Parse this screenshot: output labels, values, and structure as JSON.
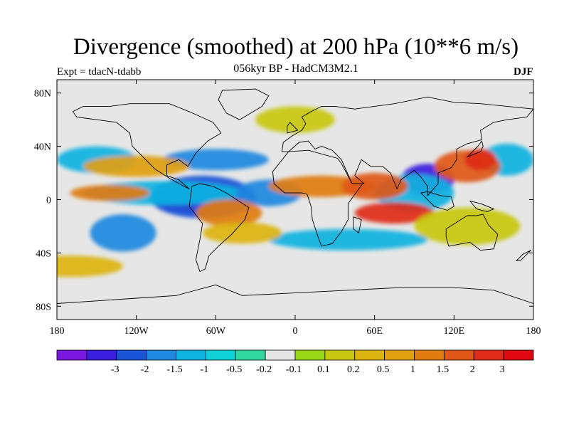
{
  "title": "Divergence (smoothed) at 200 hPa (10**6 m/s)",
  "subtitle": "056kyr BP - HadCM3M2.1",
  "experiment": "Expt = tdacN-tdabb",
  "season": "DJF",
  "map": {
    "projection": "cylindrical equidistant",
    "lon_range": [
      -180,
      180
    ],
    "lat_range": [
      -90,
      90
    ],
    "y_ticks": [
      {
        "lat": 80,
        "label": "80N"
      },
      {
        "lat": 40,
        "label": "40N"
      },
      {
        "lat": 0,
        "label": "0"
      },
      {
        "lat": -40,
        "label": "40S"
      },
      {
        "lat": -80,
        "label": "80S"
      }
    ],
    "x_ticks": [
      {
        "lon": -180,
        "label": "180"
      },
      {
        "lon": -120,
        "label": "120W"
      },
      {
        "lon": -60,
        "label": "60W"
      },
      {
        "lon": 0,
        "label": "0"
      },
      {
        "lon": 60,
        "label": "60E"
      },
      {
        "lon": 120,
        "label": "120E"
      },
      {
        "lon": 180,
        "label": "180"
      }
    ]
  },
  "colorbar": {
    "colors": [
      "#7a18e0",
      "#3a1ee0",
      "#1a55d8",
      "#1e88e0",
      "#10b2e0",
      "#10d0d8",
      "#30d8a0",
      "#e6e6e6",
      "#98d818",
      "#c8c810",
      "#dcb410",
      "#e0a010",
      "#e07c10",
      "#e05818",
      "#e02c18",
      "#e00810"
    ],
    "labels": [
      "-3",
      "-2",
      "-1.5",
      "-1",
      "-0.5",
      "-0.2",
      "-0.1",
      "0.1",
      "0.2",
      "0.5",
      "1",
      "1.5",
      "2",
      "3"
    ]
  },
  "field_anomalies": [
    {
      "lon": -80,
      "lat": 0,
      "rx": 28,
      "ry": 10,
      "level": 0
    },
    {
      "lon": -70,
      "lat": 2,
      "rx": 40,
      "ry": 16,
      "level": 2
    },
    {
      "lon": -100,
      "lat": 5,
      "rx": 60,
      "ry": 9,
      "level": 4
    },
    {
      "lon": -20,
      "lat": 5,
      "rx": 25,
      "ry": 10,
      "level": 3
    },
    {
      "lon": -130,
      "lat": -25,
      "rx": 25,
      "ry": 14,
      "level": 3
    },
    {
      "lon": -150,
      "lat": 30,
      "rx": 30,
      "ry": 10,
      "level": 4
    },
    {
      "lon": -60,
      "lat": 30,
      "rx": 40,
      "ry": 8,
      "level": 3
    },
    {
      "lon": 100,
      "lat": 15,
      "rx": 20,
      "ry": 12,
      "level": 1
    },
    {
      "lon": 90,
      "lat": 5,
      "rx": 30,
      "ry": 14,
      "level": 4
    },
    {
      "lon": 160,
      "lat": 30,
      "rx": 20,
      "ry": 12,
      "level": 4
    },
    {
      "lon": 40,
      "lat": -30,
      "rx": 60,
      "ry": 8,
      "level": 4
    },
    {
      "lon": -140,
      "lat": 5,
      "rx": 30,
      "ry": 6,
      "level": 12
    },
    {
      "lon": -50,
      "lat": -10,
      "rx": 25,
      "ry": 10,
      "level": 12
    },
    {
      "lon": 20,
      "lat": 10,
      "rx": 40,
      "ry": 8,
      "level": 12
    },
    {
      "lon": 60,
      "lat": 10,
      "rx": 25,
      "ry": 10,
      "level": 13
    },
    {
      "lon": 130,
      "lat": 25,
      "rx": 25,
      "ry": 12,
      "level": 13
    },
    {
      "lon": 140,
      "lat": 30,
      "rx": 12,
      "ry": 8,
      "level": 14
    },
    {
      "lon": 75,
      "lat": -10,
      "rx": 30,
      "ry": 8,
      "level": 14
    },
    {
      "lon": -40,
      "lat": -25,
      "rx": 30,
      "ry": 8,
      "level": 10
    },
    {
      "lon": -120,
      "lat": 25,
      "rx": 40,
      "ry": 8,
      "level": 11
    },
    {
      "lon": 130,
      "lat": -20,
      "rx": 40,
      "ry": 14,
      "level": 9
    },
    {
      "lon": 0,
      "lat": 60,
      "rx": 30,
      "ry": 10,
      "level": 9
    },
    {
      "lon": -170,
      "lat": -50,
      "rx": 40,
      "ry": 8,
      "level": 10
    }
  ],
  "continents": [
    {
      "name": "north-america",
      "points": [
        [
          -168,
          66
        ],
        [
          -160,
          70
        ],
        [
          -140,
          70
        ],
        [
          -125,
          72
        ],
        [
          -95,
          72
        ],
        [
          -80,
          66
        ],
        [
          -62,
          58
        ],
        [
          -56,
          50
        ],
        [
          -66,
          44
        ],
        [
          -75,
          35
        ],
        [
          -81,
          25
        ],
        [
          -88,
          30
        ],
        [
          -97,
          26
        ],
        [
          -97,
          18
        ],
        [
          -88,
          15
        ],
        [
          -80,
          8
        ],
        [
          -84,
          10
        ],
        [
          -95,
          16
        ],
        [
          -106,
          23
        ],
        [
          -115,
          32
        ],
        [
          -123,
          40
        ],
        [
          -125,
          50
        ],
        [
          -135,
          58
        ],
        [
          -150,
          60
        ],
        [
          -165,
          62
        ]
      ]
    },
    {
      "name": "greenland",
      "points": [
        [
          -55,
          82
        ],
        [
          -30,
          83
        ],
        [
          -20,
          78
        ],
        [
          -25,
          70
        ],
        [
          -42,
          60
        ],
        [
          -52,
          65
        ],
        [
          -58,
          75
        ]
      ]
    },
    {
      "name": "south-america",
      "points": [
        [
          -78,
          10
        ],
        [
          -72,
          12
        ],
        [
          -62,
          10
        ],
        [
          -52,
          5
        ],
        [
          -35,
          -6
        ],
        [
          -38,
          -15
        ],
        [
          -48,
          -26
        ],
        [
          -58,
          -35
        ],
        [
          -65,
          -42
        ],
        [
          -68,
          -52
        ],
        [
          -72,
          -54
        ],
        [
          -75,
          -45
        ],
        [
          -72,
          -30
        ],
        [
          -70,
          -18
        ],
        [
          -80,
          -5
        ]
      ]
    },
    {
      "name": "eurasia",
      "points": [
        [
          -10,
          36
        ],
        [
          -9,
          43
        ],
        [
          -2,
          48
        ],
        [
          5,
          52
        ],
        [
          8,
          57
        ],
        [
          5,
          62
        ],
        [
          12,
          66
        ],
        [
          20,
          70
        ],
        [
          30,
          70
        ],
        [
          45,
          68
        ],
        [
          60,
          70
        ],
        [
          75,
          72
        ],
        [
          100,
          77
        ],
        [
          120,
          73
        ],
        [
          140,
          72
        ],
        [
          160,
          70
        ],
        [
          180,
          68
        ],
        [
          175,
          62
        ],
        [
          160,
          60
        ],
        [
          150,
          58
        ],
        [
          140,
          52
        ],
        [
          141,
          45
        ],
        [
          130,
          42
        ],
        [
          122,
          38
        ],
        [
          122,
          30
        ],
        [
          118,
          24
        ],
        [
          108,
          20
        ],
        [
          108,
          12
        ],
        [
          100,
          3
        ],
        [
          100,
          10
        ],
        [
          95,
          17
        ],
        [
          90,
          22
        ],
        [
          80,
          15
        ],
        [
          77,
          8
        ],
        [
          72,
          20
        ],
        [
          66,
          25
        ],
        [
          57,
          25
        ],
        [
          50,
          30
        ],
        [
          45,
          18
        ],
        [
          52,
          12
        ],
        [
          43,
          12
        ],
        [
          35,
          30
        ],
        [
          28,
          37
        ],
        [
          20,
          40
        ],
        [
          15,
          38
        ],
        [
          10,
          44
        ],
        [
          3,
          43
        ],
        [
          -5,
          36
        ]
      ]
    },
    {
      "name": "africa",
      "points": [
        [
          -17,
          21
        ],
        [
          -16,
          12
        ],
        [
          -8,
          5
        ],
        [
          5,
          5
        ],
        [
          9,
          4
        ],
        [
          12,
          -5
        ],
        [
          13,
          -15
        ],
        [
          18,
          -30
        ],
        [
          20,
          -35
        ],
        [
          28,
          -33
        ],
        [
          35,
          -24
        ],
        [
          40,
          -15
        ],
        [
          40,
          -3
        ],
        [
          51,
          12
        ],
        [
          43,
          12
        ],
        [
          35,
          27
        ],
        [
          32,
          31
        ],
        [
          10,
          37
        ],
        [
          -5,
          36
        ]
      ]
    },
    {
      "name": "madagascar",
      "points": [
        [
          44,
          -13
        ],
        [
          50,
          -15
        ],
        [
          48,
          -25
        ],
        [
          44,
          -22
        ]
      ]
    },
    {
      "name": "australia",
      "points": [
        [
          114,
          -22
        ],
        [
          122,
          -17
        ],
        [
          130,
          -12
        ],
        [
          137,
          -12
        ],
        [
          142,
          -11
        ],
        [
          146,
          -19
        ],
        [
          153,
          -26
        ],
        [
          150,
          -37
        ],
        [
          140,
          -38
        ],
        [
          132,
          -32
        ],
        [
          116,
          -35
        ],
        [
          114,
          -28
        ]
      ]
    },
    {
      "name": "antarctica",
      "points": [
        [
          -180,
          -78
        ],
        [
          -150,
          -76
        ],
        [
          -120,
          -74
        ],
        [
          -90,
          -72
        ],
        [
          -60,
          -64
        ],
        [
          -40,
          -72
        ],
        [
          0,
          -70
        ],
        [
          40,
          -68
        ],
        [
          80,
          -66
        ],
        [
          120,
          -66
        ],
        [
          150,
          -68
        ],
        [
          180,
          -78
        ],
        [
          180,
          -90
        ],
        [
          -180,
          -90
        ]
      ]
    },
    {
      "name": "indonesia",
      "points": [
        [
          95,
          5
        ],
        [
          105,
          -5
        ],
        [
          115,
          -8
        ],
        [
          120,
          -5
        ],
        [
          118,
          2
        ],
        [
          110,
          3
        ],
        [
          100,
          6
        ]
      ]
    },
    {
      "name": "japan",
      "points": [
        [
          130,
          32
        ],
        [
          135,
          34
        ],
        [
          140,
          36
        ],
        [
          142,
          40
        ],
        [
          141,
          44
        ],
        [
          138,
          40
        ],
        [
          132,
          34
        ]
      ]
    },
    {
      "name": "new-guinea",
      "points": [
        [
          132,
          -1
        ],
        [
          140,
          -3
        ],
        [
          150,
          -7
        ],
        [
          145,
          -9
        ],
        [
          137,
          -7
        ]
      ]
    },
    {
      "name": "uk",
      "points": [
        [
          -6,
          50
        ],
        [
          2,
          52
        ],
        [
          -1,
          55
        ],
        [
          -4,
          58
        ],
        [
          -6,
          55
        ]
      ]
    },
    {
      "name": "new-zealand",
      "points": [
        [
          167,
          -46
        ],
        [
          172,
          -41
        ],
        [
          178,
          -38
        ],
        [
          176,
          -40
        ],
        [
          170,
          -46
        ]
      ]
    }
  ]
}
